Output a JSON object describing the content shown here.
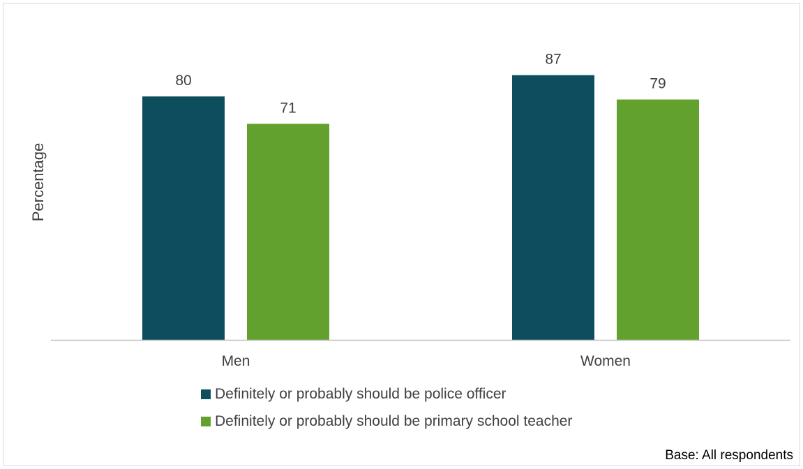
{
  "chart_data": {
    "type": "bar",
    "categories": [
      "Men",
      "Women"
    ],
    "series": [
      {
        "name": "Definitely or probably should be police officer",
        "values": [
          80,
          87
        ],
        "color": "#0e4d5d"
      },
      {
        "name": "Definitely or probably should be primary school teacher",
        "values": [
          71,
          79
        ],
        "color": "#63a12f"
      }
    ],
    "title": "",
    "xlabel": "",
    "ylabel": "Percentage",
    "ylim": [
      0,
      100
    ],
    "grid": false,
    "legend_position": "bottom",
    "note": "Base: All respondents"
  }
}
